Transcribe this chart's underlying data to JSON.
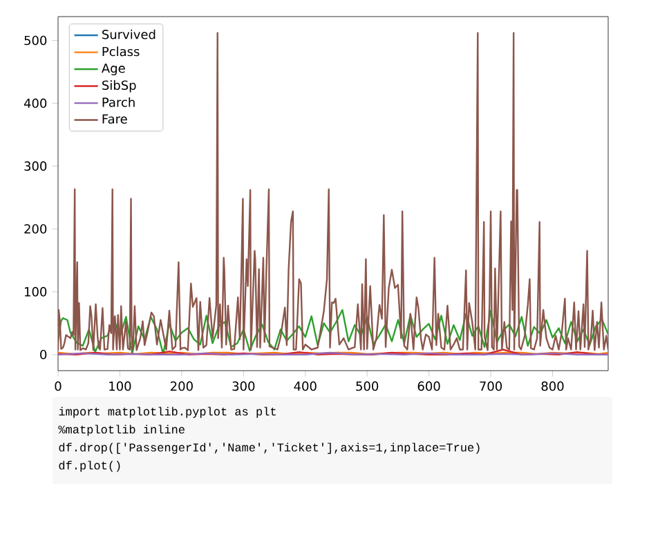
{
  "chart_data": {
    "type": "line",
    "xlim": [
      0,
      890
    ],
    "ylim": [
      -25.6,
      537.9
    ],
    "xticks": [
      0,
      100,
      200,
      300,
      400,
      500,
      600,
      700,
      800
    ],
    "yticks": [
      0,
      100,
      200,
      300,
      400,
      500
    ],
    "grid": false,
    "legend": "top left",
    "marker": "none",
    "line_style": "solid",
    "annotations": [
      "import matplotlib.pyplot as plt",
      "%matplotlib inline",
      "df.drop(['PassengerId','Name','Ticket'],axis=1,inplace=True)",
      "df.plot()"
    ],
    "series": [
      {
        "name": "Survived",
        "color": "#1f77b4"
      },
      {
        "name": "Pclass",
        "color": "#ff7f0e",
        "x": [
          0,
          25,
          50,
          75,
          100,
          125,
          150,
          175,
          200,
          225,
          250,
          275,
          300,
          325,
          350,
          375,
          400,
          425,
          450,
          475,
          500,
          525,
          550,
          575,
          600,
          625,
          650,
          675,
          700,
          725,
          750,
          775,
          800,
          825,
          850,
          875,
          890
        ],
        "values": [
          3,
          1,
          3,
          2,
          3,
          1,
          3,
          2,
          3,
          1,
          3,
          3,
          1,
          2,
          3,
          1,
          3,
          2,
          3,
          3,
          1,
          2,
          3,
          3,
          2,
          3,
          1,
          3,
          2,
          3,
          3,
          1,
          3,
          2,
          3,
          1,
          3
        ]
      },
      {
        "name": "Age",
        "color": "#2ca02c",
        "x": [
          0,
          5,
          8,
          15,
          20,
          30,
          40,
          50,
          60,
          70,
          80,
          90,
          100,
          110,
          120,
          130,
          140,
          150,
          160,
          170,
          180,
          190,
          200,
          210,
          220,
          230,
          240,
          250,
          260,
          270,
          280,
          290,
          300,
          310,
          320,
          330,
          340,
          350,
          360,
          370,
          380,
          390,
          400,
          410,
          420,
          430,
          440,
          450,
          460,
          470,
          480,
          490,
          500,
          510,
          520,
          530,
          540,
          550,
          560,
          570,
          580,
          590,
          600,
          610,
          620,
          630,
          640,
          650,
          660,
          670,
          680,
          690,
          700,
          710,
          720,
          730,
          740,
          750,
          760,
          770,
          780,
          790,
          800,
          810,
          820,
          830,
          840,
          850,
          860,
          870,
          880,
          890
        ],
        "values": [
          22,
          54,
          58,
          55,
          35,
          19,
          14,
          40,
          4,
          26,
          30,
          58,
          28,
          60,
          2,
          45,
          24,
          60,
          40,
          1,
          49,
          22,
          35,
          42,
          24,
          16,
          62,
          18,
          45,
          52,
          12,
          18,
          40,
          6,
          30,
          48,
          20,
          8,
          40,
          22,
          33,
          45,
          28,
          61,
          15,
          50,
          35,
          52,
          71,
          21,
          47,
          30,
          60,
          16,
          31,
          48,
          21,
          55,
          18,
          63,
          28,
          40,
          49,
          24,
          62,
          17,
          47,
          23,
          65,
          30,
          45,
          12,
          70,
          20,
          38,
          48,
          29,
          60,
          14,
          44,
          33,
          55,
          27,
          42,
          18,
          52,
          21,
          40,
          15,
          45,
          56,
          32
        ]
      },
      {
        "name": "SibSp",
        "color": "#d62728",
        "x": [
          0,
          30,
          60,
          90,
          120,
          150,
          180,
          210,
          240,
          270,
          300,
          330,
          360,
          390,
          420,
          450,
          480,
          510,
          540,
          570,
          600,
          630,
          660,
          690,
          720,
          750,
          780,
          810,
          840,
          870,
          890
        ],
        "values": [
          1,
          0,
          3,
          0,
          1,
          0,
          5,
          0,
          1,
          0,
          2,
          0,
          0,
          4,
          0,
          1,
          0,
          0,
          3,
          1,
          0,
          0,
          2,
          0,
          8,
          0,
          1,
          0,
          4,
          0,
          0
        ]
      },
      {
        "name": "Parch",
        "color": "#9467bd",
        "x": [
          0,
          40,
          80,
          120,
          160,
          200,
          240,
          280,
          320,
          360,
          400,
          440,
          480,
          520,
          560,
          600,
          640,
          680,
          720,
          760,
          800,
          840,
          890
        ],
        "values": [
          0,
          2,
          0,
          1,
          0,
          0,
          2,
          0,
          1,
          0,
          0,
          3,
          0,
          1,
          0,
          2,
          0,
          0,
          1,
          0,
          2,
          0,
          0
        ]
      },
      {
        "name": "Fare",
        "color": "#8c564b",
        "x": [
          0,
          1,
          3,
          5,
          8,
          10,
          13,
          16,
          20,
          23,
          25,
          27,
          28,
          31,
          32,
          34,
          36,
          40,
          45,
          49,
          52,
          54,
          57,
          61,
          64,
          66,
          68,
          72,
          75,
          80,
          83,
          86,
          88,
          89,
          92,
          95,
          97,
          100,
          102,
          105,
          110,
          113,
          116,
          118,
          119,
          121,
          124,
          127,
          133,
          137,
          140,
          145,
          151,
          155,
          160,
          166,
          170,
          175,
          180,
          185,
          190,
          195,
          198,
          200,
          205,
          210,
          215,
          218,
          224,
          227,
          230,
          235,
          240,
          245,
          250,
          256,
          258,
          259,
          262,
          265,
          268,
          269,
          272,
          275,
          280,
          285,
          291,
          294,
          297,
          299,
          300,
          305,
          307,
          311,
          312,
          318,
          319,
          322,
          325,
          327,
          332,
          334,
          337,
          341,
          342,
          350,
          355,
          360,
          367,
          370,
          373,
          377,
          380,
          381,
          385,
          390,
          393,
          396,
          400,
          410,
          420,
          430,
          435,
          438,
          440,
          443,
          446,
          449,
          455,
          462,
          470,
          475,
          480,
          485,
          490,
          492,
          495,
          498,
          500,
          505,
          510,
          515,
          520,
          524,
          527,
          530,
          535,
          540,
          545,
          550,
          555,
          557,
          560,
          565,
          570,
          575,
          580,
          583,
          587,
          590,
          595,
          600,
          605,
          609,
          612,
          615,
          620,
          625,
          630,
          635,
          640,
          645,
          650,
          655,
          660,
          662,
          665,
          670,
          675,
          679,
          680,
          685,
          689,
          690,
          695,
          698,
          700,
          702,
          705,
          707,
          710,
          716,
          718,
          722,
          726,
          730,
          733,
          735,
          737,
          738,
          742,
          743,
          746,
          749,
          755,
          760,
          763,
          765,
          770,
          775,
          779,
          780,
          785,
          790,
          795,
          800,
          805,
          810,
          815,
          820,
          822,
          825,
          830,
          835,
          838,
          842,
          845,
          850,
          852,
          856,
          858,
          862,
          865,
          868,
          872,
          875,
          879,
          883,
          887,
          890
        ],
        "values": [
          7,
          71,
          53,
          9,
          11,
          17,
          31,
          29,
          26,
          36,
          31,
          263,
          8,
          147,
          8,
          82,
          7,
          10,
          8,
          18,
          77,
          62,
          7,
          80,
          28,
          11,
          8,
          74,
          8,
          9,
          47,
          34,
          263,
          8,
          61,
          8,
          63,
          8,
          77,
          8,
          52,
          10,
          8,
          248,
          31,
          8,
          77,
          7,
          26,
          53,
          15,
          37,
          67,
          61,
          16,
          55,
          34,
          8,
          70,
          8,
          13,
          147,
          8,
          10,
          11,
          7,
          113,
          76,
          90,
          7,
          84,
          11,
          15,
          90,
          26,
          79,
          512,
          26,
          80,
          11,
          154,
          136,
          16,
          78,
          8,
          9,
          91,
          24,
          152,
          248,
          8,
          152,
          109,
          262,
          8,
          165,
          152,
          12,
          136,
          11,
          154,
          20,
          134,
          263,
          13,
          10,
          8,
          28,
          75,
          15,
          136,
          212,
          228,
          8,
          8,
          120,
          113,
          8,
          16,
          8,
          11,
          69,
          120,
          263,
          11,
          83,
          82,
          89,
          16,
          26,
          8,
          10,
          12,
          80,
          8,
          112,
          8,
          152,
          9,
          109,
          8,
          26,
          79,
          57,
          222,
          12,
          106,
          135,
          106,
          111,
          26,
          228,
          14,
          8,
          65,
          8,
          91,
          74,
          26,
          8,
          32,
          28,
          8,
          154,
          15,
          65,
          11,
          8,
          78,
          8,
          16,
          26,
          8,
          8,
          134,
          8,
          82,
          52,
          8,
          512,
          8,
          8,
          211,
          29,
          7,
          79,
          228,
          12,
          8,
          137,
          8,
          228,
          8,
          52,
          11,
          8,
          212,
          71,
          512,
          8,
          262,
          262,
          13,
          8,
          30,
          79,
          120,
          10,
          8,
          26,
          211,
          14,
          71,
          26,
          11,
          8,
          30,
          8,
          36,
          89,
          8,
          26,
          8,
          83,
          8,
          69,
          8,
          80,
          12,
          165,
          8,
          27,
          70,
          7,
          52,
          11,
          83,
          8,
          30,
          8
        ]
      }
    ]
  }
}
